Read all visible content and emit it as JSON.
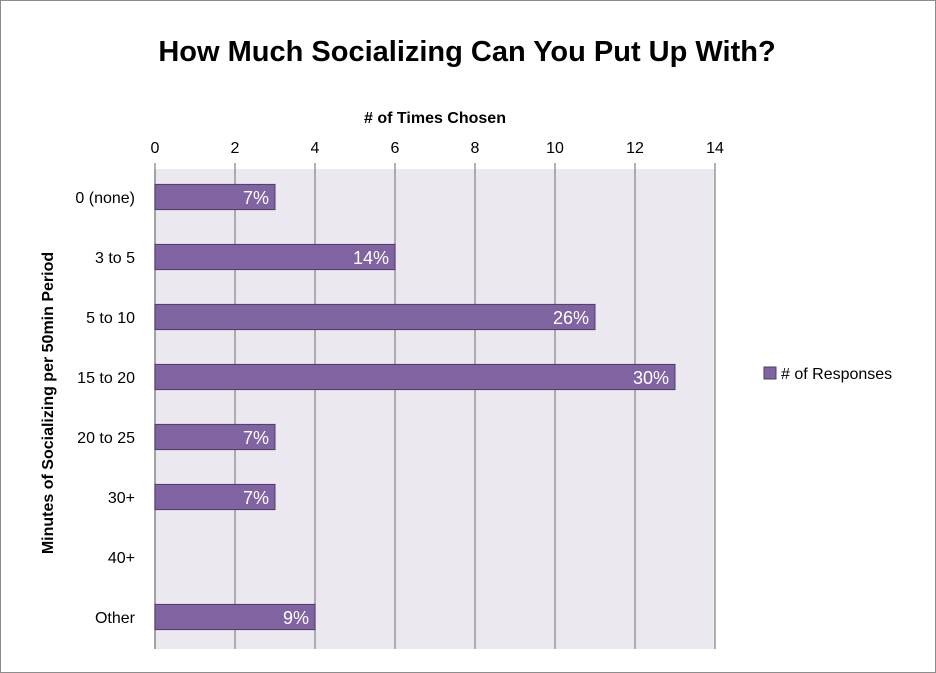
{
  "chart_data": {
    "type": "bar",
    "orientation": "horizontal",
    "title": "How Much Socializing Can You Put Up With?",
    "xlabel": "# of Times Chosen",
    "ylabel": "Minutes of Socializing per 50min Period",
    "xlim": [
      0,
      14
    ],
    "x_ticks": [
      "0",
      "2",
      "4",
      "6",
      "8",
      "10",
      "12",
      "14"
    ],
    "x_axis_position": "top",
    "grid": true,
    "legend_position": "right",
    "categories": [
      "0 (none)",
      "3 to 5",
      "5 to 10",
      "15 to 20",
      "20 to 25",
      "30+",
      "40+",
      "Other"
    ],
    "series": [
      {
        "name": "# of Responses",
        "values": [
          3,
          6,
          11,
          13,
          3,
          3,
          0,
          4
        ],
        "data_labels": [
          "7%",
          "14%",
          "26%",
          "30%",
          "7%",
          "7%",
          "",
          "9%"
        ],
        "color": "#8064a2",
        "border_color": "#4e3d6b"
      }
    ],
    "plot_background": "#ebe9ef",
    "gridline_color": "#8a8a8a"
  }
}
